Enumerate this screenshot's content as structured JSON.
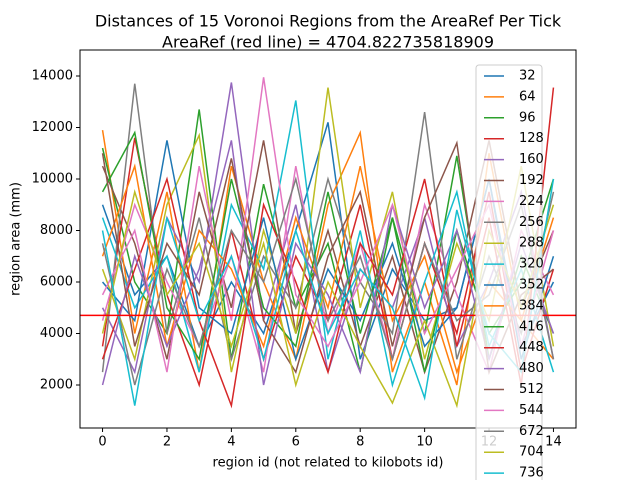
{
  "chart_data": {
    "type": "line",
    "title": "Distances of 15 Voronoi Regions from the AreaRef Per Tick",
    "subtitle": "AreaRef (red line) = 4704.822735818909",
    "x_label": "region id (not related to kilobots id)",
    "y_label": "region area (mm)",
    "ref_line": 4704.822735818909,
    "ref_color": "#ff0000",
    "x": [
      0,
      1,
      2,
      3,
      4,
      5,
      6,
      7,
      8,
      9,
      10,
      11,
      12,
      13,
      14
    ],
    "xlim": [
      -0.7,
      14.7
    ],
    "xticks": [
      0,
      2,
      4,
      6,
      8,
      10,
      12,
      14
    ],
    "ylim": [
      330,
      15010
    ],
    "yticks": [
      2000,
      4000,
      6000,
      8000,
      10000,
      12000,
      14000
    ],
    "series": [
      {
        "name": "32",
        "color": "#1f77b4",
        "values": [
          9000,
          5500,
          7000,
          3500,
          6000,
          4000,
          8000,
          12200,
          3000,
          6500,
          4500,
          5000,
          10000,
          3500,
          6000
        ]
      },
      {
        "name": "64",
        "color": "#ff7f0e",
        "values": [
          11900,
          4000,
          9500,
          2500,
          10500,
          6000,
          3000,
          9000,
          11800,
          2500,
          6000,
          2000,
          11000,
          4500,
          3000
        ]
      },
      {
        "name": "96",
        "color": "#2ca02c",
        "values": [
          11200,
          6000,
          4000,
          12700,
          3000,
          9800,
          5000,
          7500,
          2500,
          8500,
          4000,
          10900,
          3000,
          7000,
          4000
        ]
      },
      {
        "name": "128",
        "color": "#d62728",
        "values": [
          3500,
          11600,
          5500,
          2000,
          8000,
          3000,
          7000,
          4500,
          9000,
          3000,
          7500,
          4000,
          9500,
          2500,
          6500
        ]
      },
      {
        "name": "160",
        "color": "#9467bd",
        "values": [
          5000,
          2500,
          8500,
          6000,
          13750,
          4500,
          9000,
          2500,
          6500,
          5000,
          8500,
          3500,
          6000,
          9500,
          3000
        ]
      },
      {
        "name": "192",
        "color": "#8c564b",
        "values": [
          10500,
          7500,
          3000,
          9500,
          5000,
          11500,
          4000,
          8000,
          3500,
          7000,
          2500,
          6000,
          11500,
          5000,
          8000
        ]
      },
      {
        "name": "224",
        "color": "#e377c2",
        "values": [
          4500,
          9000,
          6000,
          3500,
          7000,
          2500,
          10500,
          4000,
          7500,
          3000,
          9000,
          5500,
          2500,
          8000,
          5500
        ]
      },
      {
        "name": "256",
        "color": "#7f7f7f",
        "values": [
          2500,
          13700,
          4000,
          8500,
          3000,
          7000,
          5000,
          10000,
          6000,
          4000,
          12600,
          3000,
          7000,
          4000,
          9500
        ]
      },
      {
        "name": "288",
        "color": "#bcbd22",
        "values": [
          6500,
          3000,
          9000,
          11700,
          2500,
          8000,
          4000,
          13550,
          5000,
          9500,
          3000,
          7500,
          4500,
          10500,
          3500
        ]
      },
      {
        "name": "320",
        "color": "#17becf",
        "values": [
          8500,
          5000,
          7000,
          2500,
          9000,
          6500,
          13050,
          3000,
          8000,
          2000,
          6000,
          9500,
          3500,
          6500,
          2500
        ]
      },
      {
        "name": "352",
        "color": "#1f77b4",
        "values": [
          6000,
          4500,
          11500,
          5000,
          4000,
          8500,
          3000,
          6500,
          4500,
          7500,
          3500,
          5000,
          10000,
          3000,
          7000
        ]
      },
      {
        "name": "384",
        "color": "#ff7f0e",
        "values": [
          7000,
          10500,
          3500,
          8000,
          6500,
          3500,
          8500,
          5000,
          10500,
          4500,
          7000,
          2500,
          6000,
          4500,
          8500
        ]
      },
      {
        "name": "416",
        "color": "#2ca02c",
        "values": [
          9500,
          11800,
          5000,
          3000,
          10000,
          5000,
          3500,
          9500,
          4000,
          8500,
          2500,
          8000,
          4000,
          6000,
          10000
        ]
      },
      {
        "name": "448",
        "color": "#d62728",
        "values": [
          3000,
          6500,
          10000,
          4500,
          1200,
          9000,
          6000,
          2500,
          7500,
          5500,
          10000,
          3500,
          8500,
          2000,
          13550
        ]
      },
      {
        "name": "480",
        "color": "#9467bd",
        "values": [
          2000,
          7000,
          3500,
          6500,
          11500,
          2000,
          7500,
          5500,
          2500,
          9000,
          5000,
          8000,
          3000,
          7500,
          4000
        ]
      },
      {
        "name": "512",
        "color": "#8c564b",
        "values": [
          11000,
          3500,
          7500,
          5500,
          10800,
          4500,
          2500,
          7000,
          9500,
          3500,
          8500,
          11400,
          2500,
          5500,
          6500
        ]
      },
      {
        "name": "544",
        "color": "#e377c2",
        "values": [
          5500,
          8000,
          2500,
          10500,
          4500,
          13950,
          5500,
          3500,
          6000,
          9000,
          4000,
          6500,
          9000,
          3500,
          8000
        ]
      },
      {
        "name": "672",
        "color": "#7f7f7f",
        "values": [
          7500,
          2000,
          6500,
          3500,
          8000,
          6000,
          10000,
          4500,
          7000,
          3000,
          7500,
          4500,
          5500,
          9000,
          3000
        ]
      },
      {
        "name": "704",
        "color": "#bcbd22",
        "values": [
          4000,
          9500,
          5500,
          7500,
          3500,
          7500,
          2000,
          6000,
          3500,
          1300,
          4500,
          1200,
          8000,
          5000,
          9000
        ]
      },
      {
        "name": "736",
        "color": "#17becf",
        "values": [
          8000,
          1200,
          8500,
          4500,
          7000,
          3000,
          8000,
          4000,
          6500,
          5000,
          1500,
          8800,
          4000,
          2500,
          10000
        ]
      }
    ]
  }
}
